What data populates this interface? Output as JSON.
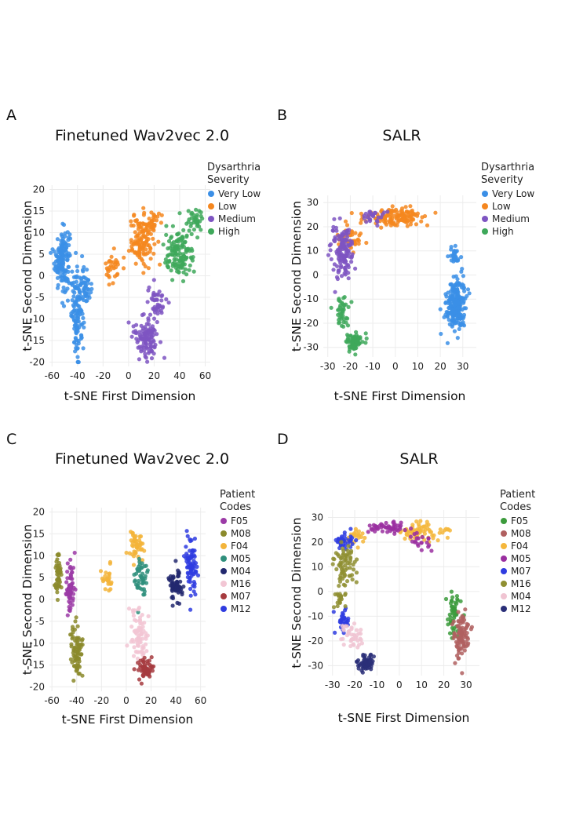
{
  "colors": {
    "very_low": "#3b8fe6",
    "low": "#f5871f",
    "medium": "#7e55c2",
    "high": "#3ea85a",
    "F05": "#9b3aa6",
    "M08": "#8b8a2c",
    "F04": "#f3b43a",
    "M05": "#2f8f7c",
    "M04": "#22286e",
    "M16": "#f2c6d4",
    "M07": "#a63b3f",
    "M12": "#2f3ce0",
    "d_F05": "#3c9b3c",
    "d_M08": "#b06060",
    "d_F04": "#f5b73c",
    "d_M05": "#9a2fa0",
    "d_M07": "#2f3ce0",
    "d_M16": "#8f8f32",
    "d_M04": "#f0c4d2",
    "d_M12": "#2a2f78"
  },
  "chart_data": [
    {
      "panel": "A",
      "type": "scatter",
      "title": "Finetuned Wav2vec 2.0",
      "xlabel": "t-SNE First Dimension",
      "ylabel": "t-SNE Second Dimension",
      "xlim": [
        -62,
        64
      ],
      "ylim": [
        -21,
        21
      ],
      "xticks": [
        "-60",
        "-40",
        "-20",
        "0",
        "20",
        "40",
        "60"
      ],
      "xtick_values": [
        -60,
        -40,
        -20,
        0,
        20,
        40,
        60
      ],
      "yticks": [
        "-20",
        "-15",
        "-10",
        "-5",
        "0",
        "5",
        "10",
        "15",
        "20"
      ],
      "ytick_values": [
        -20,
        -15,
        -10,
        -5,
        0,
        5,
        10,
        15,
        20
      ],
      "legend_title": [
        "Dysarthria",
        "Severity"
      ],
      "series": [
        {
          "name": "Very Low",
          "color_key": "very_low",
          "blobs": [
            [
              -52,
              4,
              5,
              6,
              150
            ],
            [
              -40,
              -9,
              4,
              8,
              120
            ],
            [
              -33,
              -2,
              3,
              4,
              40
            ]
          ]
        },
        {
          "name": "Low",
          "color_key": "low",
          "blobs": [
            [
              10,
              8,
              8,
              5,
              110
            ],
            [
              -12,
              2,
              5,
              3,
              30
            ],
            [
              18,
              12,
              5,
              3,
              30
            ]
          ]
        },
        {
          "name": "Medium",
          "color_key": "medium",
          "blobs": [
            [
              14,
              -14,
              8,
              4,
              110
            ],
            [
              22,
              -6,
              6,
              3,
              45
            ]
          ]
        },
        {
          "name": "High",
          "color_key": "high",
          "blobs": [
            [
              40,
              5,
              10,
              5,
              130
            ],
            [
              52,
              12,
              5,
              3,
              35
            ]
          ]
        }
      ]
    },
    {
      "panel": "B",
      "type": "scatter",
      "title": "SALR",
      "xlabel": "t-SNE First Dimension",
      "ylabel": "t-SNE Second Dimension",
      "xlim": [
        -32,
        36
      ],
      "ylim": [
        -34,
        33
      ],
      "xticks": [
        "-30",
        "-20",
        "-10",
        "0",
        "10",
        "20",
        "30"
      ],
      "xtick_values": [
        -30,
        -20,
        -10,
        0,
        10,
        20,
        30
      ],
      "yticks": [
        "-30",
        "-20",
        "-10",
        "0",
        "10",
        "20",
        "30"
      ],
      "ytick_values": [
        -30,
        -20,
        -10,
        0,
        10,
        20,
        30
      ],
      "legend_title": [
        "Dysarthria",
        "Severity"
      ],
      "series": [
        {
          "name": "Very Low",
          "color_key": "very_low",
          "blobs": [
            [
              27,
              -12,
              3.5,
              9,
              230
            ],
            [
              26,
              8,
              2,
              4,
              30
            ]
          ]
        },
        {
          "name": "Low",
          "color_key": "low",
          "blobs": [
            [
              0,
              24,
              12,
              3,
              130
            ],
            [
              -20,
              15,
              5,
              3,
              40
            ]
          ]
        },
        {
          "name": "Medium",
          "color_key": "medium",
          "blobs": [
            [
              -24,
              10,
              4,
              9,
              140
            ],
            [
              -10,
              24,
              5,
              2,
              25
            ]
          ]
        },
        {
          "name": "High",
          "color_key": "high",
          "blobs": [
            [
              -18,
              -28,
              3,
              3,
              80
            ],
            [
              -24,
              -15,
              3,
              5,
              40
            ]
          ]
        }
      ]
    },
    {
      "panel": "C",
      "type": "scatter",
      "title": "Finetuned Wav2vec 2.0",
      "xlabel": "t-SNE First Dimension",
      "ylabel": "t-SNE Second Dimension",
      "xlim": [
        -62,
        64
      ],
      "ylim": [
        -21,
        21
      ],
      "xticks": [
        "-60",
        "-40",
        "-20",
        "0",
        "20",
        "40",
        "60"
      ],
      "xtick_values": [
        -60,
        -40,
        -20,
        0,
        20,
        40,
        60
      ],
      "yticks": [
        "-20",
        "-15",
        "-10",
        "-5",
        "0",
        "5",
        "10",
        "15",
        "20"
      ],
      "ytick_values": [
        -20,
        -15,
        -10,
        -5,
        0,
        5,
        10,
        15,
        20
      ],
      "legend_title": [
        "Patient",
        "Codes"
      ],
      "series": [
        {
          "name": "F05",
          "color_key": "F05",
          "blobs": [
            [
              -45,
              3,
              3,
              5,
              70
            ]
          ]
        },
        {
          "name": "M08",
          "color_key": "M08",
          "blobs": [
            [
              -55,
              5,
              2,
              5,
              50
            ],
            [
              -40,
              -12,
              4,
              5,
              80
            ]
          ]
        },
        {
          "name": "F04",
          "color_key": "F04",
          "blobs": [
            [
              8,
              12,
              5,
              3,
              50
            ],
            [
              -15,
              5,
              4,
              3,
              25
            ]
          ]
        },
        {
          "name": "M05",
          "color_key": "M05",
          "blobs": [
            [
              12,
              5,
              4,
              4,
              50
            ]
          ]
        },
        {
          "name": "M04",
          "color_key": "M04",
          "blobs": [
            [
              40,
              3,
              5,
              3,
              60
            ]
          ]
        },
        {
          "name": "M16",
          "color_key": "M16",
          "blobs": [
            [
              10,
              -8,
              6,
              5,
              80
            ]
          ]
        },
        {
          "name": "M07",
          "color_key": "M07",
          "blobs": [
            [
              15,
              -16,
              5,
              2,
              60
            ]
          ]
        },
        {
          "name": "M12",
          "color_key": "M12",
          "blobs": [
            [
              52,
              8,
              4,
              5,
              80
            ]
          ]
        }
      ]
    },
    {
      "panel": "D",
      "type": "scatter",
      "title": "SALR",
      "xlabel": "t-SNE First Dimension",
      "ylabel": "t-SNE Second Dimension",
      "xlim": [
        -32,
        36
      ],
      "ylim": [
        -34,
        33
      ],
      "xticks": [
        "-30",
        "-20",
        "-10",
        "0",
        "10",
        "20",
        "30"
      ],
      "xtick_values": [
        -30,
        -20,
        -10,
        0,
        10,
        20,
        30
      ],
      "yticks": [
        "-30",
        "-20",
        "-10",
        "0",
        "10",
        "20",
        "30"
      ],
      "ytick_values": [
        -30,
        -20,
        -10,
        0,
        10,
        20,
        30
      ],
      "legend_title": [
        "Patient",
        "Codes"
      ],
      "series": [
        {
          "name": "F05",
          "color_key": "d_F05",
          "blobs": [
            [
              24,
              -10,
              3,
              8,
              50
            ]
          ]
        },
        {
          "name": "M08",
          "color_key": "d_M08",
          "blobs": [
            [
              28,
              -18,
              3,
              8,
              90
            ]
          ]
        },
        {
          "name": "F04",
          "color_key": "d_F04",
          "blobs": [
            [
              10,
              24,
              8,
              3,
              70
            ],
            [
              -20,
              22,
              4,
              3,
              25
            ]
          ]
        },
        {
          "name": "M05",
          "color_key": "d_M05",
          "blobs": [
            [
              -5,
              26,
              8,
              2,
              50
            ],
            [
              10,
              20,
              4,
              3,
              20
            ]
          ]
        },
        {
          "name": "M07",
          "color_key": "d_M07",
          "blobs": [
            [
              -25,
              20,
              4,
              4,
              35
            ],
            [
              -25,
              -12,
              3,
              4,
              30
            ]
          ]
        },
        {
          "name": "M16",
          "color_key": "d_M16",
          "blobs": [
            [
              -24,
              10,
              4,
              7,
              70
            ],
            [
              -27,
              -3,
              2,
              3,
              20
            ]
          ]
        },
        {
          "name": "M04",
          "color_key": "d_M04",
          "blobs": [
            [
              -22,
              -18,
              4,
              4,
              40
            ]
          ]
        },
        {
          "name": "M12",
          "color_key": "d_M12",
          "blobs": [
            [
              -15,
              -29,
              3,
              3,
              60
            ]
          ]
        }
      ]
    }
  ]
}
